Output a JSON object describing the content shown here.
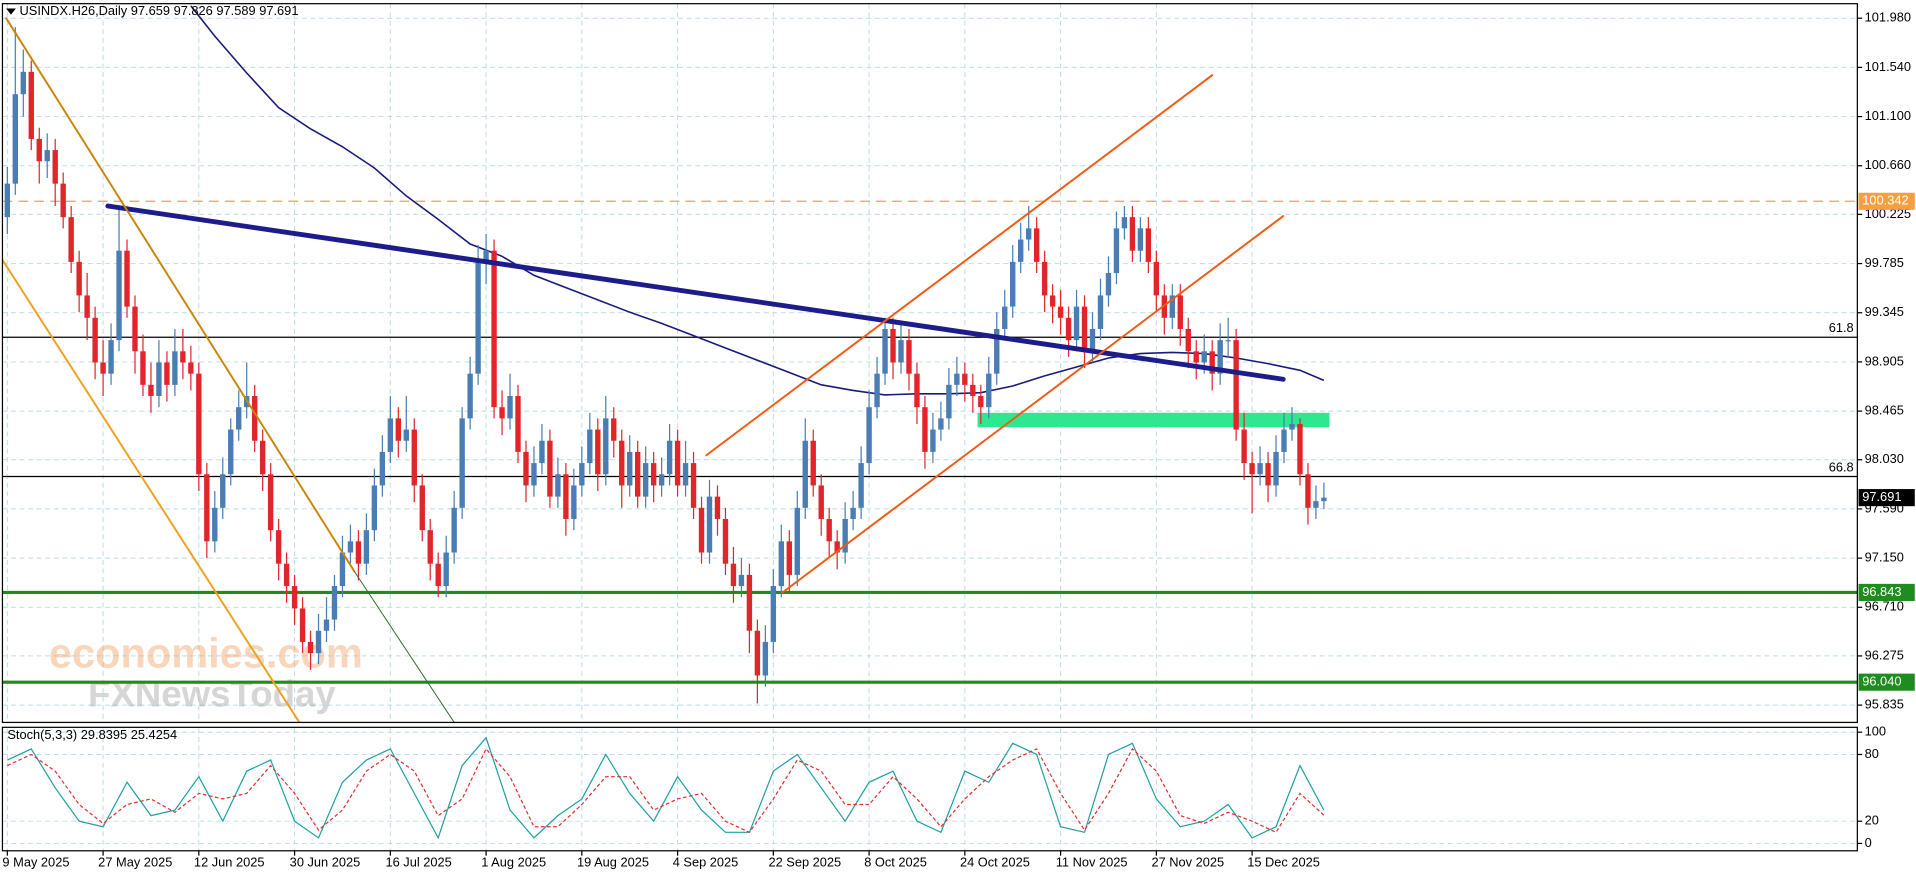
{
  "chart_data": {
    "type": "candlestick",
    "symbol": "USINDX.H26,Daily",
    "categories": [
      "9 May 2025",
      null,
      null,
      null,
      null,
      null,
      null,
      null,
      null,
      null,
      null,
      null,
      "27 May 2025",
      null,
      null,
      null,
      null,
      null,
      null,
      null,
      null,
      null,
      null,
      null,
      "12 Jun 2025",
      null,
      null,
      null,
      null,
      null,
      null,
      null,
      null,
      null,
      null,
      null,
      "30 Jun 2025",
      null,
      null,
      null,
      null,
      null,
      null,
      null,
      null,
      null,
      null,
      null,
      "16 Jul 2025",
      null,
      null,
      null,
      null,
      null,
      null,
      null,
      null,
      null,
      null,
      null,
      "1 Aug 2025",
      null,
      null,
      null,
      null,
      null,
      null,
      null,
      null,
      null,
      null,
      null,
      "19 Aug 2025",
      null,
      null,
      null,
      null,
      null,
      null,
      null,
      null,
      null,
      null,
      null,
      "4 Sep 2025",
      null,
      null,
      null,
      null,
      null,
      null,
      null,
      null,
      null,
      null,
      null,
      "22 Sep 2025",
      null,
      null,
      null,
      null,
      null,
      null,
      null,
      null,
      null,
      null,
      null,
      "8 Oct 2025",
      null,
      null,
      null,
      null,
      null,
      null,
      null,
      null,
      null,
      null,
      null,
      "24 Oct 2025",
      null,
      null,
      null,
      null,
      null,
      null,
      null,
      null,
      null,
      null,
      null,
      "11 Nov 2025",
      null,
      null,
      null,
      null,
      null,
      null,
      null,
      null,
      null,
      null,
      null,
      "27 Nov 2025",
      null,
      null,
      null,
      null,
      null,
      null,
      null,
      null,
      null,
      null,
      null,
      "15 Dec 2025",
      null,
      null,
      null,
      null,
      null,
      null,
      null,
      null,
      null
    ],
    "open": [
      100.2,
      100.5,
      101.3,
      101.5,
      100.9,
      100.7,
      100.8,
      100.5,
      100.2,
      99.8,
      99.5,
      99.3,
      98.9,
      98.8,
      99.1,
      99.9,
      99.4,
      99.0,
      98.7,
      98.6,
      98.9,
      98.7,
      99.0,
      98.9,
      98.8,
      97.9,
      97.3,
      97.6,
      97.9,
      98.3,
      98.5,
      98.6,
      98.2,
      97.9,
      97.4,
      97.1,
      96.9,
      96.7,
      96.4,
      96.3,
      96.5,
      96.6,
      96.9,
      97.2,
      97.3,
      97.1,
      97.4,
      97.8,
      98.1,
      98.4,
      98.2,
      98.3,
      97.8,
      97.4,
      97.1,
      96.9,
      97.2,
      97.6,
      98.4,
      98.8,
      99.8,
      99.9,
      98.5,
      98.4,
      98.6,
      98.1,
      97.8,
      98.0,
      98.2,
      97.7,
      97.9,
      97.5,
      97.8,
      98.0,
      98.3,
      97.9,
      98.4,
      98.2,
      97.8,
      98.1,
      97.7,
      98.0,
      97.8,
      97.9,
      98.2,
      97.8,
      98.0,
      97.6,
      97.2,
      97.7,
      97.5,
      97.1,
      96.9,
      97.0,
      96.5,
      96.1,
      96.4,
      96.9,
      97.3,
      97.0,
      97.6,
      98.2,
      97.8,
      97.5,
      97.3,
      97.2,
      97.5,
      97.6,
      98.0,
      98.5,
      98.8,
      99.2,
      98.9,
      99.1,
      98.8,
      98.5,
      98.1,
      98.3,
      98.4,
      98.7,
      98.8,
      98.7,
      98.6,
      98.5,
      98.8,
      99.2,
      99.4,
      99.8,
      100.0,
      100.1,
      99.8,
      99.5,
      99.4,
      99.3,
      99.1,
      99.4,
      99.0,
      99.2,
      99.5,
      99.7,
      100.1,
      100.2,
      99.9,
      100.1,
      99.8,
      99.5,
      99.3,
      99.5,
      99.2,
      99.0,
      98.9,
      99.0,
      98.8,
      99.1,
      99.1,
      98.3,
      98.0,
      97.9,
      98.0,
      97.8,
      98.1,
      98.3,
      98.35,
      97.9,
      97.6,
      97.659
    ],
    "high": [
      100.65,
      101.9,
      101.7,
      101.6,
      101.0,
      100.95,
      100.9,
      100.6,
      100.3,
      99.9,
      99.7,
      99.4,
      99.1,
      99.25,
      100.3,
      100.0,
      99.5,
      99.15,
      98.9,
      99.1,
      99.0,
      99.2,
      99.2,
      99.05,
      98.9,
      98.0,
      97.75,
      98.05,
      98.4,
      98.65,
      98.9,
      98.7,
      98.3,
      98.0,
      97.5,
      97.2,
      97.0,
      96.8,
      96.5,
      96.65,
      96.8,
      97.0,
      97.35,
      97.45,
      97.4,
      97.55,
      97.95,
      98.25,
      98.6,
      98.5,
      98.6,
      98.4,
      97.9,
      97.5,
      97.2,
      97.35,
      97.75,
      98.5,
      98.95,
      99.95,
      100.05,
      100.0,
      98.65,
      98.8,
      98.7,
      98.2,
      98.15,
      98.35,
      98.3,
      98.05,
      98.0,
      97.95,
      98.15,
      98.45,
      98.4,
      98.6,
      98.5,
      98.3,
      98.25,
      98.2,
      98.15,
      98.1,
      98.05,
      98.35,
      98.3,
      98.2,
      98.1,
      97.7,
      97.85,
      97.8,
      97.6,
      97.25,
      97.15,
      97.1,
      96.6,
      96.55,
      97.05,
      97.45,
      97.4,
      97.75,
      98.4,
      98.3,
      97.9,
      97.6,
      97.4,
      97.65,
      97.75,
      98.15,
      98.65,
      98.95,
      99.3,
      99.3,
      99.25,
      99.2,
      98.9,
      98.6,
      98.45,
      98.55,
      98.85,
      98.95,
      98.9,
      98.8,
      98.7,
      98.95,
      99.35,
      99.55,
      99.95,
      100.15,
      100.3,
      100.2,
      99.9,
      99.6,
      99.55,
      99.4,
      99.55,
      99.5,
      99.35,
      99.65,
      99.85,
      100.25,
      100.3,
      100.3,
      100.2,
      100.2,
      99.9,
      99.6,
      99.6,
      99.6,
      99.3,
      99.1,
      99.15,
      99.1,
      99.25,
      99.3,
      99.2,
      98.45,
      98.1,
      98.15,
      98.1,
      98.25,
      98.45,
      98.5,
      98.4,
      98.0,
      97.8,
      97.826
    ],
    "low": [
      100.05,
      100.4,
      101.1,
      100.8,
      100.5,
      100.55,
      100.3,
      100.1,
      99.7,
      99.35,
      99.1,
      98.75,
      98.6,
      98.7,
      99.0,
      99.3,
      98.8,
      98.6,
      98.45,
      98.5,
      98.55,
      98.6,
      98.75,
      98.65,
      97.75,
      97.15,
      97.2,
      97.5,
      97.8,
      98.2,
      98.4,
      98.1,
      97.75,
      97.3,
      96.95,
      96.75,
      96.55,
      96.3,
      96.15,
      96.2,
      96.4,
      96.5,
      96.8,
      97.1,
      96.95,
      97.0,
      97.3,
      97.7,
      98.0,
      98.05,
      98.1,
      97.65,
      97.3,
      96.95,
      96.8,
      96.8,
      97.1,
      97.5,
      98.3,
      98.7,
      99.6,
      98.4,
      98.25,
      98.3,
      98.0,
      97.65,
      97.7,
      97.9,
      97.6,
      97.6,
      97.35,
      97.4,
      97.7,
      97.9,
      97.75,
      97.8,
      98.05,
      97.6,
      97.7,
      97.6,
      97.6,
      97.65,
      97.7,
      97.8,
      97.7,
      97.7,
      97.5,
      97.1,
      97.1,
      97.35,
      97.0,
      96.75,
      96.8,
      96.3,
      95.85,
      96.0,
      96.3,
      96.8,
      96.85,
      96.9,
      97.5,
      97.7,
      97.35,
      97.15,
      97.05,
      97.1,
      97.4,
      97.5,
      97.9,
      98.4,
      98.7,
      98.75,
      98.8,
      98.65,
      98.35,
      97.95,
      98.0,
      98.2,
      98.3,
      98.6,
      98.55,
      98.45,
      98.35,
      98.4,
      98.7,
      99.1,
      99.3,
      99.7,
      99.9,
      99.7,
      99.35,
      99.25,
      99.15,
      98.95,
      99.0,
      98.85,
      98.9,
      99.1,
      99.4,
      99.6,
      100.0,
      99.8,
      99.8,
      99.7,
      99.35,
      99.15,
      99.2,
      99.05,
      98.85,
      98.75,
      98.8,
      98.65,
      98.7,
      98.95,
      98.2,
      97.85,
      97.55,
      97.8,
      97.65,
      97.7,
      98.0,
      98.2,
      97.8,
      97.45,
      97.5,
      97.589
    ],
    "close": [
      100.5,
      101.3,
      101.5,
      100.9,
      100.7,
      100.8,
      100.5,
      100.2,
      99.8,
      99.5,
      99.3,
      98.9,
      98.8,
      99.1,
      99.9,
      99.4,
      99.0,
      98.7,
      98.6,
      98.9,
      98.7,
      99.0,
      98.9,
      98.8,
      97.9,
      97.3,
      97.6,
      97.9,
      98.3,
      98.5,
      98.6,
      98.2,
      97.9,
      97.4,
      97.1,
      96.9,
      96.7,
      96.4,
      96.3,
      96.5,
      96.6,
      96.9,
      97.2,
      97.3,
      97.1,
      97.4,
      97.8,
      98.1,
      98.4,
      98.2,
      98.3,
      97.8,
      97.4,
      97.1,
      96.9,
      97.2,
      97.6,
      98.4,
      98.8,
      99.8,
      99.9,
      98.5,
      98.4,
      98.6,
      98.1,
      97.8,
      98.0,
      98.2,
      97.7,
      97.9,
      97.5,
      97.8,
      98.0,
      98.3,
      97.9,
      98.4,
      98.2,
      97.8,
      98.1,
      97.7,
      98.0,
      97.8,
      97.9,
      98.2,
      97.8,
      98.0,
      97.6,
      97.2,
      97.7,
      97.5,
      97.1,
      96.9,
      97.0,
      96.5,
      96.1,
      96.4,
      96.9,
      97.3,
      97.0,
      97.6,
      98.2,
      97.8,
      97.5,
      97.3,
      97.2,
      97.5,
      97.6,
      98.0,
      98.5,
      98.8,
      99.2,
      98.9,
      99.1,
      98.8,
      98.5,
      98.1,
      98.3,
      98.4,
      98.7,
      98.8,
      98.7,
      98.6,
      98.5,
      98.8,
      99.2,
      99.4,
      99.8,
      100.0,
      100.1,
      99.8,
      99.5,
      99.4,
      99.3,
      99.1,
      99.4,
      99.0,
      99.2,
      99.5,
      99.7,
      100.1,
      100.2,
      99.9,
      100.1,
      99.8,
      99.5,
      99.3,
      99.5,
      99.2,
      99.0,
      98.9,
      99.0,
      98.8,
      99.1,
      99.1,
      98.3,
      98.0,
      97.9,
      98.0,
      97.8,
      98.1,
      98.3,
      98.35,
      97.9,
      97.6,
      97.66,
      97.691
    ],
    "up_color": "#4a7db3",
    "down_color": "#e0262b",
    "ylim": [
      95.68,
      102.11
    ],
    "yticks": [
      {
        "value": 101.98,
        "label": "101.980"
      },
      {
        "value": 101.54,
        "label": "101.540"
      },
      {
        "value": 101.1,
        "label": "101.100"
      },
      {
        "value": 100.66,
        "label": "100.660"
      },
      100.225,
      99.785,
      99.345,
      98.905,
      98.465,
      {
        "value": 98.03,
        "label": "98.030"
      },
      {
        "value": 97.59,
        "label": "97.590"
      },
      {
        "value": 97.15,
        "label": "97.150"
      },
      {
        "value": 96.71,
        "label": "96.710"
      },
      96.275,
      95.835
    ],
    "grid": true,
    "moving_average": {
      "color": "#1a1a7a",
      "x": [
        23,
        26,
        30,
        34,
        38,
        42,
        46,
        50,
        54,
        58,
        62,
        66,
        70,
        74,
        78,
        82,
        86,
        90,
        94,
        98,
        102,
        106,
        110,
        114,
        118,
        122,
        126,
        130,
        134,
        138,
        142,
        146,
        150,
        154,
        158,
        162,
        165
      ],
      "values": [
        102.09,
        101.82,
        101.49,
        101.18,
        100.99,
        100.83,
        100.64,
        100.39,
        100.18,
        99.96,
        99.85,
        99.68,
        99.57,
        99.46,
        99.35,
        99.25,
        99.14,
        99.03,
        98.92,
        98.81,
        98.7,
        98.65,
        98.61,
        98.62,
        98.62,
        98.63,
        98.69,
        98.78,
        98.86,
        98.94,
        98.98,
        98.99,
        98.98,
        98.94,
        98.89,
        98.83,
        98.74
      ]
    },
    "trendlines": [
      {
        "from": [
          12.6,
          100.3
        ],
        "to": [
          159.9,
          98.75
        ],
        "color": "#1c1c8a",
        "style": "thick"
      },
      {
        "from": [
          -0.15,
          101.98
        ],
        "to": [
          43.5,
          97.03
        ],
        "color": "#c8860a",
        "style": "normal"
      },
      {
        "from": [
          43.5,
          97.03
        ],
        "to": [
          56.0,
          95.68
        ],
        "color": "#2e6b2e",
        "style": "thin"
      },
      {
        "from": [
          -0.9,
          99.85
        ],
        "to": [
          36.6,
          95.68
        ],
        "color": "#f0a020",
        "style": "normal"
      },
      {
        "from": [
          97.1,
          96.84
        ],
        "to": [
          159.9,
          100.21
        ],
        "color": "#f05a14",
        "style": "normal"
      },
      {
        "from": [
          87.6,
          98.07
        ],
        "to": [
          151.0,
          101.47
        ],
        "color": "#f05a14",
        "style": "normal"
      }
    ],
    "zone": {
      "from": 121.6,
      "to": 165.7,
      "top": 98.45,
      "bottom": 98.32,
      "color": "#2ee88f"
    },
    "levels": [
      {
        "price": 100.342,
        "label": "100.342",
        "color": "#f5a040",
        "dash": true
      },
      {
        "price": 99.126,
        "name": "61.8",
        "color": "#000000"
      },
      {
        "price": 97.88,
        "name": "66.8",
        "color": "#000000"
      },
      {
        "price": 96.843,
        "label": "96.843",
        "color": "#1e8c1e",
        "style": "bold"
      },
      {
        "price": 96.04,
        "label": "96.040",
        "color": "#1e8c1e",
        "style": "bold"
      }
    ],
    "watermark": [
      "economies.com",
      "FXNewsToday"
    ],
    "indicator": {
      "type": "line",
      "title": "Stoch(5,3,3)",
      "ylim": [
        0,
        100
      ],
      "yticks": [
        0,
        20,
        80,
        100
      ],
      "series": [
        {
          "color": "#20a0a0",
          "dash": false,
          "x": [
            0,
            3,
            6,
            9,
            12,
            15,
            18,
            21,
            24,
            27,
            30,
            33,
            36,
            39,
            42,
            45,
            48,
            51,
            54,
            57,
            60,
            63,
            66,
            69,
            72,
            75,
            78,
            81,
            84,
            87,
            90,
            93,
            96,
            99,
            102,
            105,
            108,
            111,
            114,
            117,
            120,
            123,
            126,
            129,
            132,
            135,
            138,
            141,
            144,
            147,
            150,
            153,
            156,
            159,
            162,
            165
          ],
          "values": [
            75,
            85,
            50,
            20,
            15,
            55,
            25,
            30,
            60,
            20,
            65,
            75,
            20,
            5,
            55,
            75,
            85,
            45,
            5,
            70,
            95,
            30,
            5,
            25,
            40,
            80,
            45,
            20,
            60,
            30,
            10,
            10,
            65,
            80,
            50,
            20,
            55,
            65,
            20,
            10,
            65,
            55,
            90,
            80,
            15,
            10,
            80,
            90,
            40,
            15,
            20,
            35,
            5,
            15,
            70,
            29.8395
          ]
        },
        {
          "color": "#e03030",
          "dash": true,
          "x": [
            0,
            3,
            6,
            9,
            12,
            15,
            18,
            21,
            24,
            27,
            30,
            33,
            36,
            39,
            42,
            45,
            48,
            51,
            54,
            57,
            60,
            63,
            66,
            69,
            72,
            75,
            78,
            81,
            84,
            87,
            90,
            93,
            96,
            99,
            102,
            105,
            108,
            111,
            114,
            117,
            120,
            123,
            126,
            129,
            132,
            135,
            138,
            141,
            144,
            147,
            150,
            153,
            156,
            159,
            162,
            165
          ],
          "values": [
            70,
            80,
            65,
            35,
            18,
            35,
            40,
            28,
            45,
            40,
            45,
            70,
            45,
            12,
            30,
            65,
            80,
            65,
            25,
            40,
            85,
            60,
            15,
            15,
            35,
            60,
            60,
            30,
            40,
            45,
            20,
            10,
            40,
            75,
            65,
            35,
            35,
            60,
            40,
            15,
            40,
            60,
            75,
            85,
            45,
            12,
            45,
            85,
            65,
            25,
            18,
            28,
            20,
            10,
            45,
            25.4254
          ]
        }
      ]
    }
  }
}
